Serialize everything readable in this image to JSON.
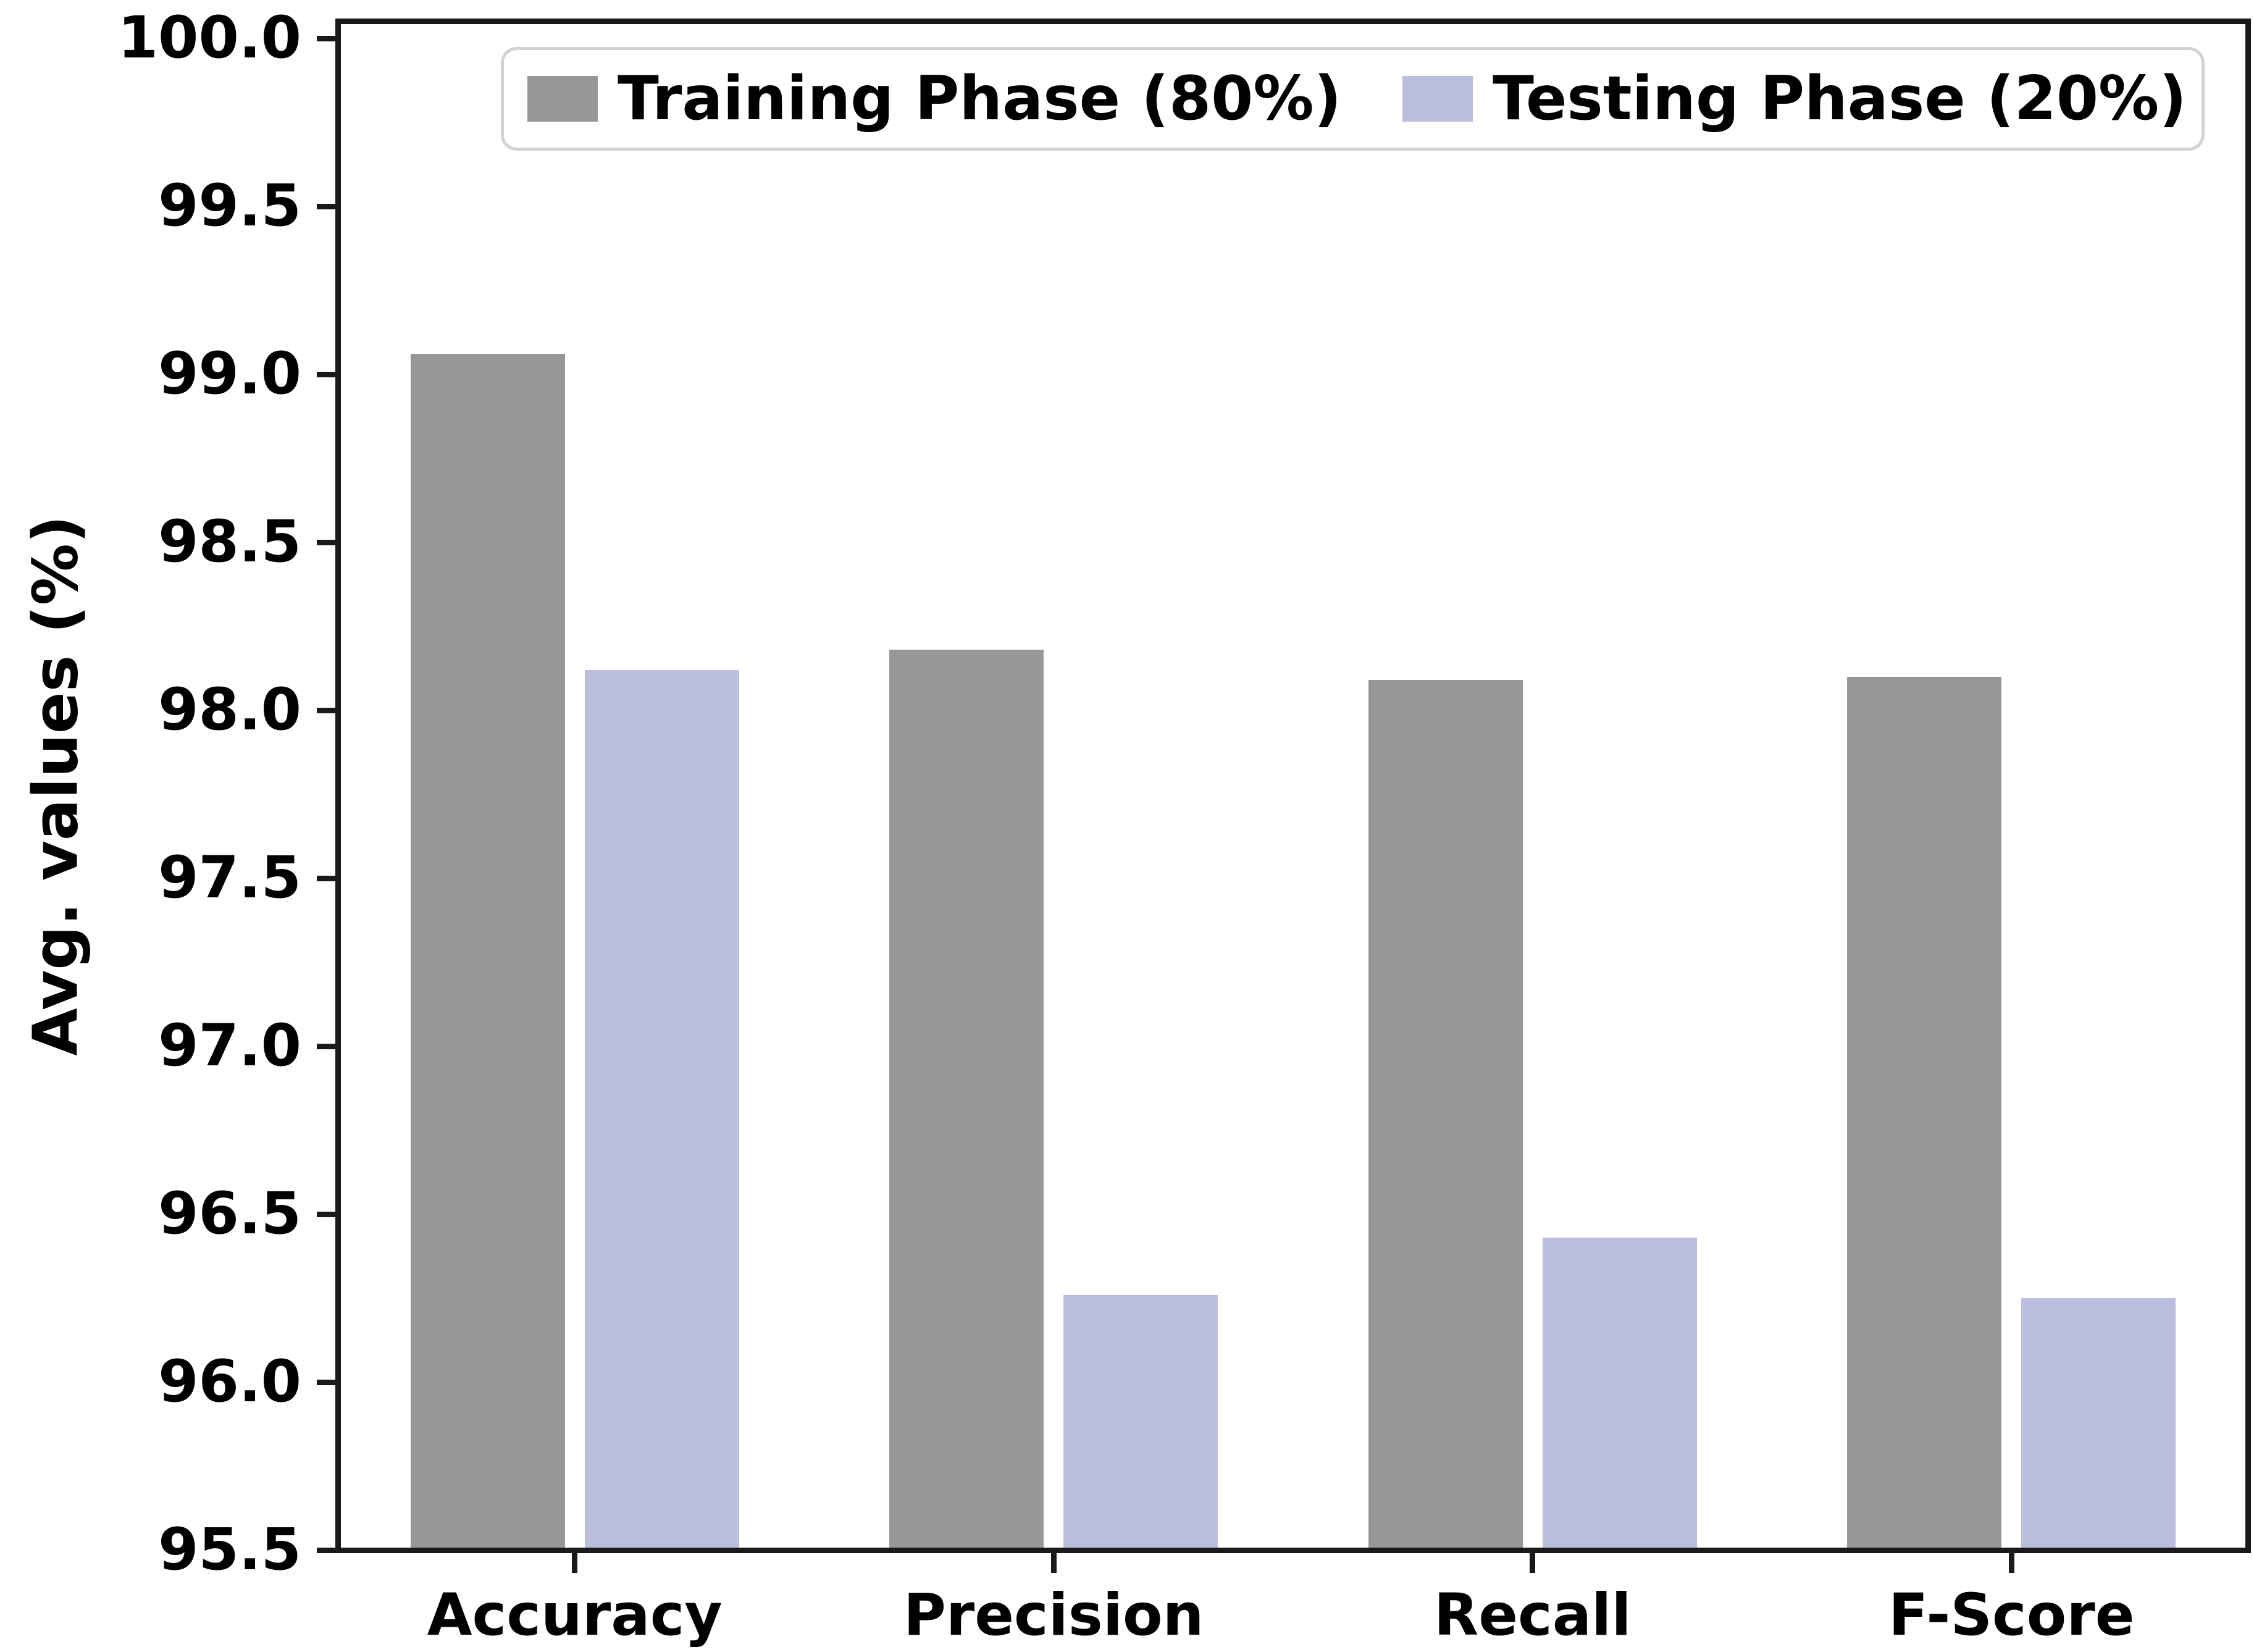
{
  "figure": {
    "background": "#ffffff",
    "text_color": "#000000",
    "spine_color": "#1a1a1a",
    "legend_border_color": "#d2d2d2"
  },
  "chart_data": {
    "type": "bar",
    "title": "",
    "categories": [
      "Accuracy",
      "Precision",
      "Recall",
      "F-Score"
    ],
    "series": [
      {
        "name": "Training Phase (80%)",
        "color": "#979797",
        "values": [
          99.06,
          98.18,
          98.09,
          98.1
        ]
      },
      {
        "name": "Testing Phase (20%)",
        "color": "#bcbedd",
        "values": [
          98.12,
          96.26,
          96.43,
          96.25
        ]
      }
    ],
    "xlabel": "",
    "ylabel": "Avg. values (%)",
    "ylim": [
      95.5,
      100.0
    ],
    "ytick_step": 0.5,
    "ytick_labels": [
      "100.0",
      "99.5",
      "99.0",
      "98.5",
      "98.0",
      "97.5",
      "97.0",
      "96.5",
      "96.0",
      "95.5"
    ],
    "grid": false,
    "legend_position": "upper center",
    "bar_layout": {
      "group_width_fraction": 0.322,
      "pair_offset_fraction": 0.182
    }
  }
}
